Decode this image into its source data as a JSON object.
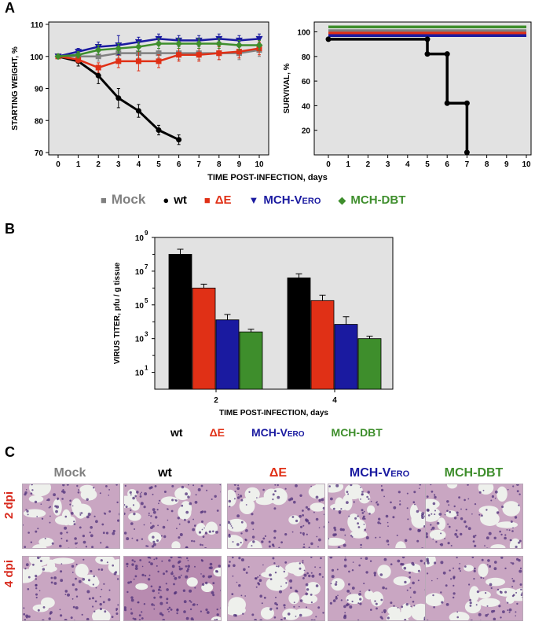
{
  "panels": {
    "a": "A",
    "b": "B",
    "c": "C"
  },
  "colors": {
    "mock": "#808080",
    "wt": "#000000",
    "dE": "#e03016",
    "vero": "#1a1aa0",
    "dbt": "#3e8e2c",
    "plot_bg": "#e2e2e2"
  },
  "legend_a": [
    {
      "key": "mock",
      "symbol": "square",
      "glyph": "■",
      "label": "Mock"
    },
    {
      "key": "wt",
      "symbol": "circle",
      "glyph": "●",
      "label": "wt"
    },
    {
      "key": "dE",
      "symbol": "square",
      "glyph": "■",
      "label": "ΔE"
    },
    {
      "key": "vero",
      "symbol": "triangle-down",
      "glyph": "▼",
      "label": "MCH-Vero"
    },
    {
      "key": "dbt",
      "symbol": "diamond",
      "glyph": "◆",
      "label": "MCH-DBT"
    }
  ],
  "legend_b": [
    {
      "key": "wt",
      "label": "wt"
    },
    {
      "key": "dE",
      "label": "ΔE"
    },
    {
      "key": "vero",
      "label": "MCH-Vero"
    },
    {
      "key": "dbt",
      "label": "MCH-DBT"
    }
  ],
  "shared_xlabel_a": "TIME POST-INFECTION, days",
  "chart_data": [
    {
      "type": "line",
      "ylabel": "STARTING WEIGHT, %",
      "xlim": [
        0,
        10
      ],
      "ylim": [
        70,
        110
      ],
      "xticks": [
        0,
        1,
        2,
        3,
        4,
        5,
        6,
        7,
        8,
        9,
        10
      ],
      "yticks": [
        70,
        80,
        90,
        100,
        110
      ],
      "grid": false,
      "series": [
        {
          "name": "Mock",
          "key": "mock",
          "x": [
            0,
            1,
            2,
            3,
            4,
            5,
            6,
            7,
            8,
            9,
            10
          ],
          "y": [
            100,
            100,
            100,
            101,
            101,
            101,
            101,
            101,
            101,
            101,
            102
          ],
          "err": [
            0.5,
            1,
            1.5,
            1.5,
            1.5,
            1.5,
            2,
            2,
            2,
            2,
            2
          ]
        },
        {
          "name": "wt",
          "key": "wt",
          "x": [
            0,
            1,
            2,
            3,
            4,
            5,
            6
          ],
          "y": [
            100,
            98.5,
            94,
            87,
            83,
            77,
            74
          ],
          "err": [
            0.5,
            1.5,
            2.5,
            3,
            2,
            1.5,
            1.5
          ]
        },
        {
          "name": "ΔE",
          "key": "dE",
          "x": [
            0,
            1,
            2,
            3,
            4,
            5,
            6,
            7,
            8,
            9,
            10
          ],
          "y": [
            100,
            99,
            96.5,
            98.5,
            98.5,
            98.5,
            100.5,
            100.5,
            101,
            101.5,
            102.5
          ],
          "err": [
            0.5,
            1,
            1.5,
            2,
            3,
            2,
            2,
            2,
            2,
            2,
            2
          ]
        },
        {
          "name": "MCH-Vero",
          "key": "vero",
          "x": [
            0,
            1,
            2,
            3,
            4,
            5,
            6,
            7,
            8,
            9,
            10
          ],
          "y": [
            100,
            101.5,
            103,
            103.5,
            104.5,
            105.5,
            105,
            105,
            105.5,
            105,
            105.5
          ],
          "err": [
            0.5,
            1,
            1.5,
            3,
            1.5,
            1.5,
            1.5,
            1.5,
            1.5,
            1.5,
            1.5
          ]
        },
        {
          "name": "MCH-DBT",
          "key": "dbt",
          "x": [
            0,
            1,
            2,
            3,
            4,
            5,
            6,
            7,
            8,
            9,
            10
          ],
          "y": [
            100,
            100.5,
            102,
            102.5,
            103,
            104,
            104,
            104,
            104,
            103.5,
            103.5
          ],
          "err": [
            0.5,
            1,
            1.5,
            1.5,
            1.5,
            1.5,
            1.5,
            1.5,
            1.5,
            1.5,
            1.5
          ]
        }
      ]
    },
    {
      "type": "line",
      "ylabel": "SURVIVAL, %",
      "xlim": [
        0,
        10
      ],
      "ylim": [
        0,
        108
      ],
      "xticks": [
        0,
        1,
        2,
        3,
        4,
        5,
        6,
        7,
        8,
        9,
        10
      ],
      "yticks": [
        20,
        40,
        60,
        80,
        100
      ],
      "grid": false,
      "series": [
        {
          "name": "Mock",
          "key": "mock",
          "x": [
            0,
            10
          ],
          "y": [
            101,
            101
          ]
        },
        {
          "name": "MCH-DBT",
          "key": "dbt",
          "x": [
            0,
            10
          ],
          "y": [
            104,
            104
          ]
        },
        {
          "name": "ΔE",
          "key": "dE",
          "x": [
            0,
            10
          ],
          "y": [
            99,
            99
          ]
        },
        {
          "name": "MCH-Vero",
          "key": "vero",
          "x": [
            0,
            10
          ],
          "y": [
            97,
            97
          ]
        },
        {
          "name": "wt",
          "key": "wt",
          "x": [
            0,
            5,
            5,
            6,
            6,
            7,
            7
          ],
          "y": [
            94,
            94,
            82,
            82,
            42,
            42,
            2
          ],
          "markers_x": [
            0,
            5,
            5,
            6,
            6,
            7,
            7
          ],
          "markers_y": [
            94,
            94,
            82,
            82,
            42,
            42,
            2
          ]
        }
      ]
    },
    {
      "type": "bar",
      "ylabel": "VIRUS TITER, pfu / g tissue",
      "xlabel": "TIME POST-INFECTION, days",
      "scale": "log",
      "ylim": [
        1,
        1000000000
      ],
      "yticks": [
        {
          "exp": "1",
          "value": 10
        },
        {
          "exp": "3",
          "value": 1000
        },
        {
          "exp": "5",
          "value": 100000
        },
        {
          "exp": "7",
          "value": 10000000
        },
        {
          "exp": "9",
          "value": 1000000000
        }
      ],
      "categories": [
        "2",
        "4"
      ],
      "series": [
        {
          "name": "wt",
          "key": "wt",
          "values": [
            100000000,
            4000000
          ],
          "err_high": [
            200000000,
            7000000
          ]
        },
        {
          "name": "ΔE",
          "key": "dE",
          "values": [
            1000000,
            180000
          ],
          "err_high": [
            1700000,
            380000
          ]
        },
        {
          "name": "MCH-Vero",
          "key": "vero",
          "values": [
            13000,
            7000
          ],
          "err_high": [
            27000,
            20000
          ]
        },
        {
          "name": "MCH-DBT",
          "key": "dbt",
          "values": [
            2500,
            1000
          ],
          "err_high": [
            3600,
            1400
          ]
        }
      ]
    }
  ],
  "panel_c": {
    "columns": [
      {
        "key": "mock",
        "label": "Mock",
        "color": "#808080"
      },
      {
        "key": "wt",
        "label": "wt",
        "color": "#000000"
      },
      {
        "key": "dE",
        "label": "ΔE",
        "color": "#e03016"
      },
      {
        "key": "vero",
        "label": "MCH-Vero",
        "color": "#1a1aa0"
      },
      {
        "key": "dbt",
        "label": "MCH-DBT",
        "color": "#3e8e2c"
      }
    ],
    "rows": [
      "2 dpi",
      "4 dpi"
    ]
  }
}
